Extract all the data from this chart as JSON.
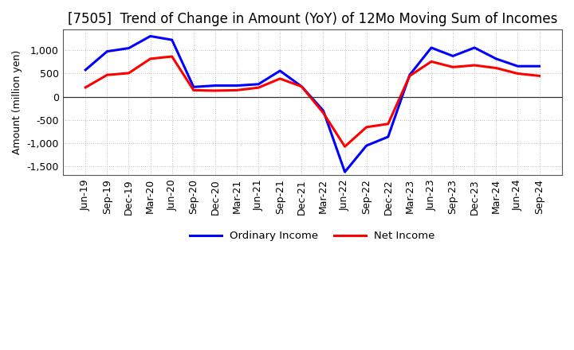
{
  "title": "[7505]  Trend of Change in Amount (YoY) of 12Mo Moving Sum of Incomes",
  "ylabel": "Amount (million yen)",
  "x_labels": [
    "Jun-19",
    "Sep-19",
    "Dec-19",
    "Mar-20",
    "Jun-20",
    "Sep-20",
    "Dec-20",
    "Mar-21",
    "Jun-21",
    "Sep-21",
    "Dec-21",
    "Mar-22",
    "Jun-22",
    "Sep-22",
    "Dec-22",
    "Mar-23",
    "Jun-23",
    "Sep-23",
    "Dec-23",
    "Mar-24",
    "Jun-24",
    "Sep-24"
  ],
  "ordinary_income": [
    580,
    980,
    1050,
    1310,
    1230,
    210,
    240,
    240,
    270,
    560,
    220,
    -300,
    -1630,
    -1060,
    -870,
    470,
    1060,
    880,
    1060,
    820,
    660,
    660
  ],
  "net_income": [
    200,
    470,
    510,
    820,
    870,
    140,
    130,
    140,
    195,
    390,
    220,
    -350,
    -1080,
    -660,
    -590,
    450,
    760,
    640,
    680,
    620,
    500,
    450
  ],
  "ordinary_color": "#0000FF",
  "net_color": "#FF0000",
  "bg_color": "#FFFFFF",
  "plot_bg_color": "#FFFFFF",
  "ylim": [
    -1700,
    1450
  ],
  "yticks": [
    -1500,
    -1000,
    -500,
    0,
    500,
    1000
  ],
  "legend_labels": [
    "Ordinary Income",
    "Net Income"
  ],
  "line_width": 2.2,
  "title_fontsize": 12,
  "ylabel_fontsize": 9,
  "tick_fontsize": 9,
  "grid_color": "#AAAAAA",
  "grid_linestyle": "dotted",
  "grid_linewidth": 0.6
}
